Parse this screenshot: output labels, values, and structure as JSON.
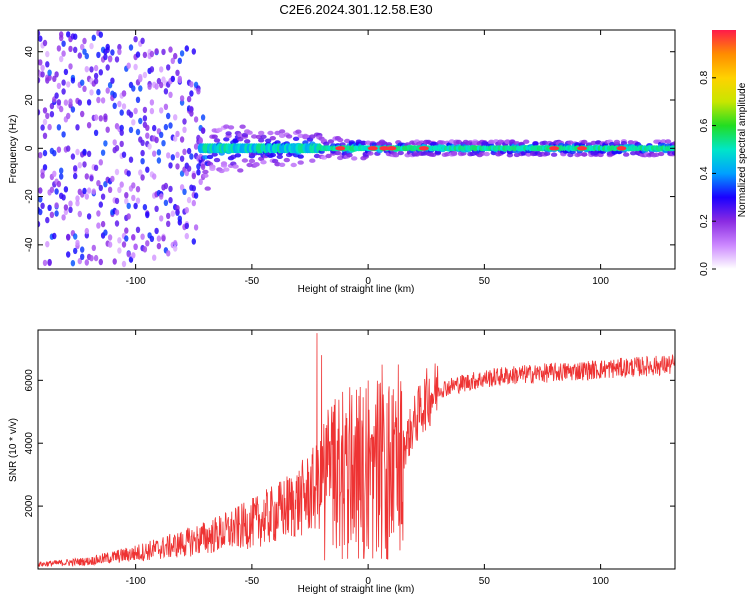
{
  "title": "C2E6.2024.301.12.58.E30",
  "chart_data": [
    {
      "type": "heatmap",
      "xlabel": "Height of straight line (km)",
      "ylabel": "Frequency (Hz)",
      "xlim": [
        -142,
        132
      ],
      "ylim": [
        -50,
        49
      ],
      "xticks": [
        -100,
        -50,
        0,
        50,
        100
      ],
      "yticks": [
        -40,
        -20,
        0,
        20,
        40
      ],
      "colorbar": {
        "label": "Normalized spectral amplitude",
        "range": [
          0,
          1
        ],
        "ticks": [
          "0.0",
          "0.2",
          "0.4",
          "0.6",
          "0.8"
        ],
        "colors": [
          "#ffffff",
          "#cc88ff",
          "#8a2be2",
          "#1a00ff",
          "#00a0ff",
          "#00e6c8",
          "#22dd22",
          "#c8e600",
          "#ffd200",
          "#ff8c00",
          "#ff1a4a"
        ]
      },
      "ridge": {
        "center_hz": 0,
        "bright_spots_km": [
          -12,
          2,
          7,
          10,
          24,
          80,
          92,
          109
        ]
      }
    },
    {
      "type": "line",
      "xlabel": "Height of straight line (km)",
      "ylabel": "SNR (10 * v/v)",
      "xlim": [
        -142,
        132
      ],
      "ylim": [
        0,
        7600
      ],
      "xticks": [
        -100,
        -50,
        0,
        50,
        100
      ],
      "yticks": [
        2000,
        4000,
        6000
      ],
      "color": "#ee3333",
      "envelope_x": [
        -142,
        -120,
        -100,
        -80,
        -70,
        -60,
        -50,
        -40,
        -30,
        -20,
        -15,
        -10,
        -5,
        0,
        5,
        10,
        15,
        20,
        25,
        30,
        40,
        50,
        60,
        80,
        100,
        120,
        132
      ],
      "envelope_y": [
        150,
        250,
        500,
        800,
        1000,
        1200,
        1450,
        1750,
        2150,
        2700,
        2950,
        3250,
        3350,
        3400,
        3300,
        3100,
        3800,
        4700,
        5400,
        5700,
        5900,
        6050,
        6150,
        6250,
        6350,
        6450,
        6500
      ],
      "spikes_x": [
        -22,
        -20,
        -15,
        -5,
        0,
        6,
        10
      ],
      "spikes_y": [
        7500,
        6800,
        5000,
        5700,
        4400,
        6500,
        1800
      ]
    }
  ]
}
